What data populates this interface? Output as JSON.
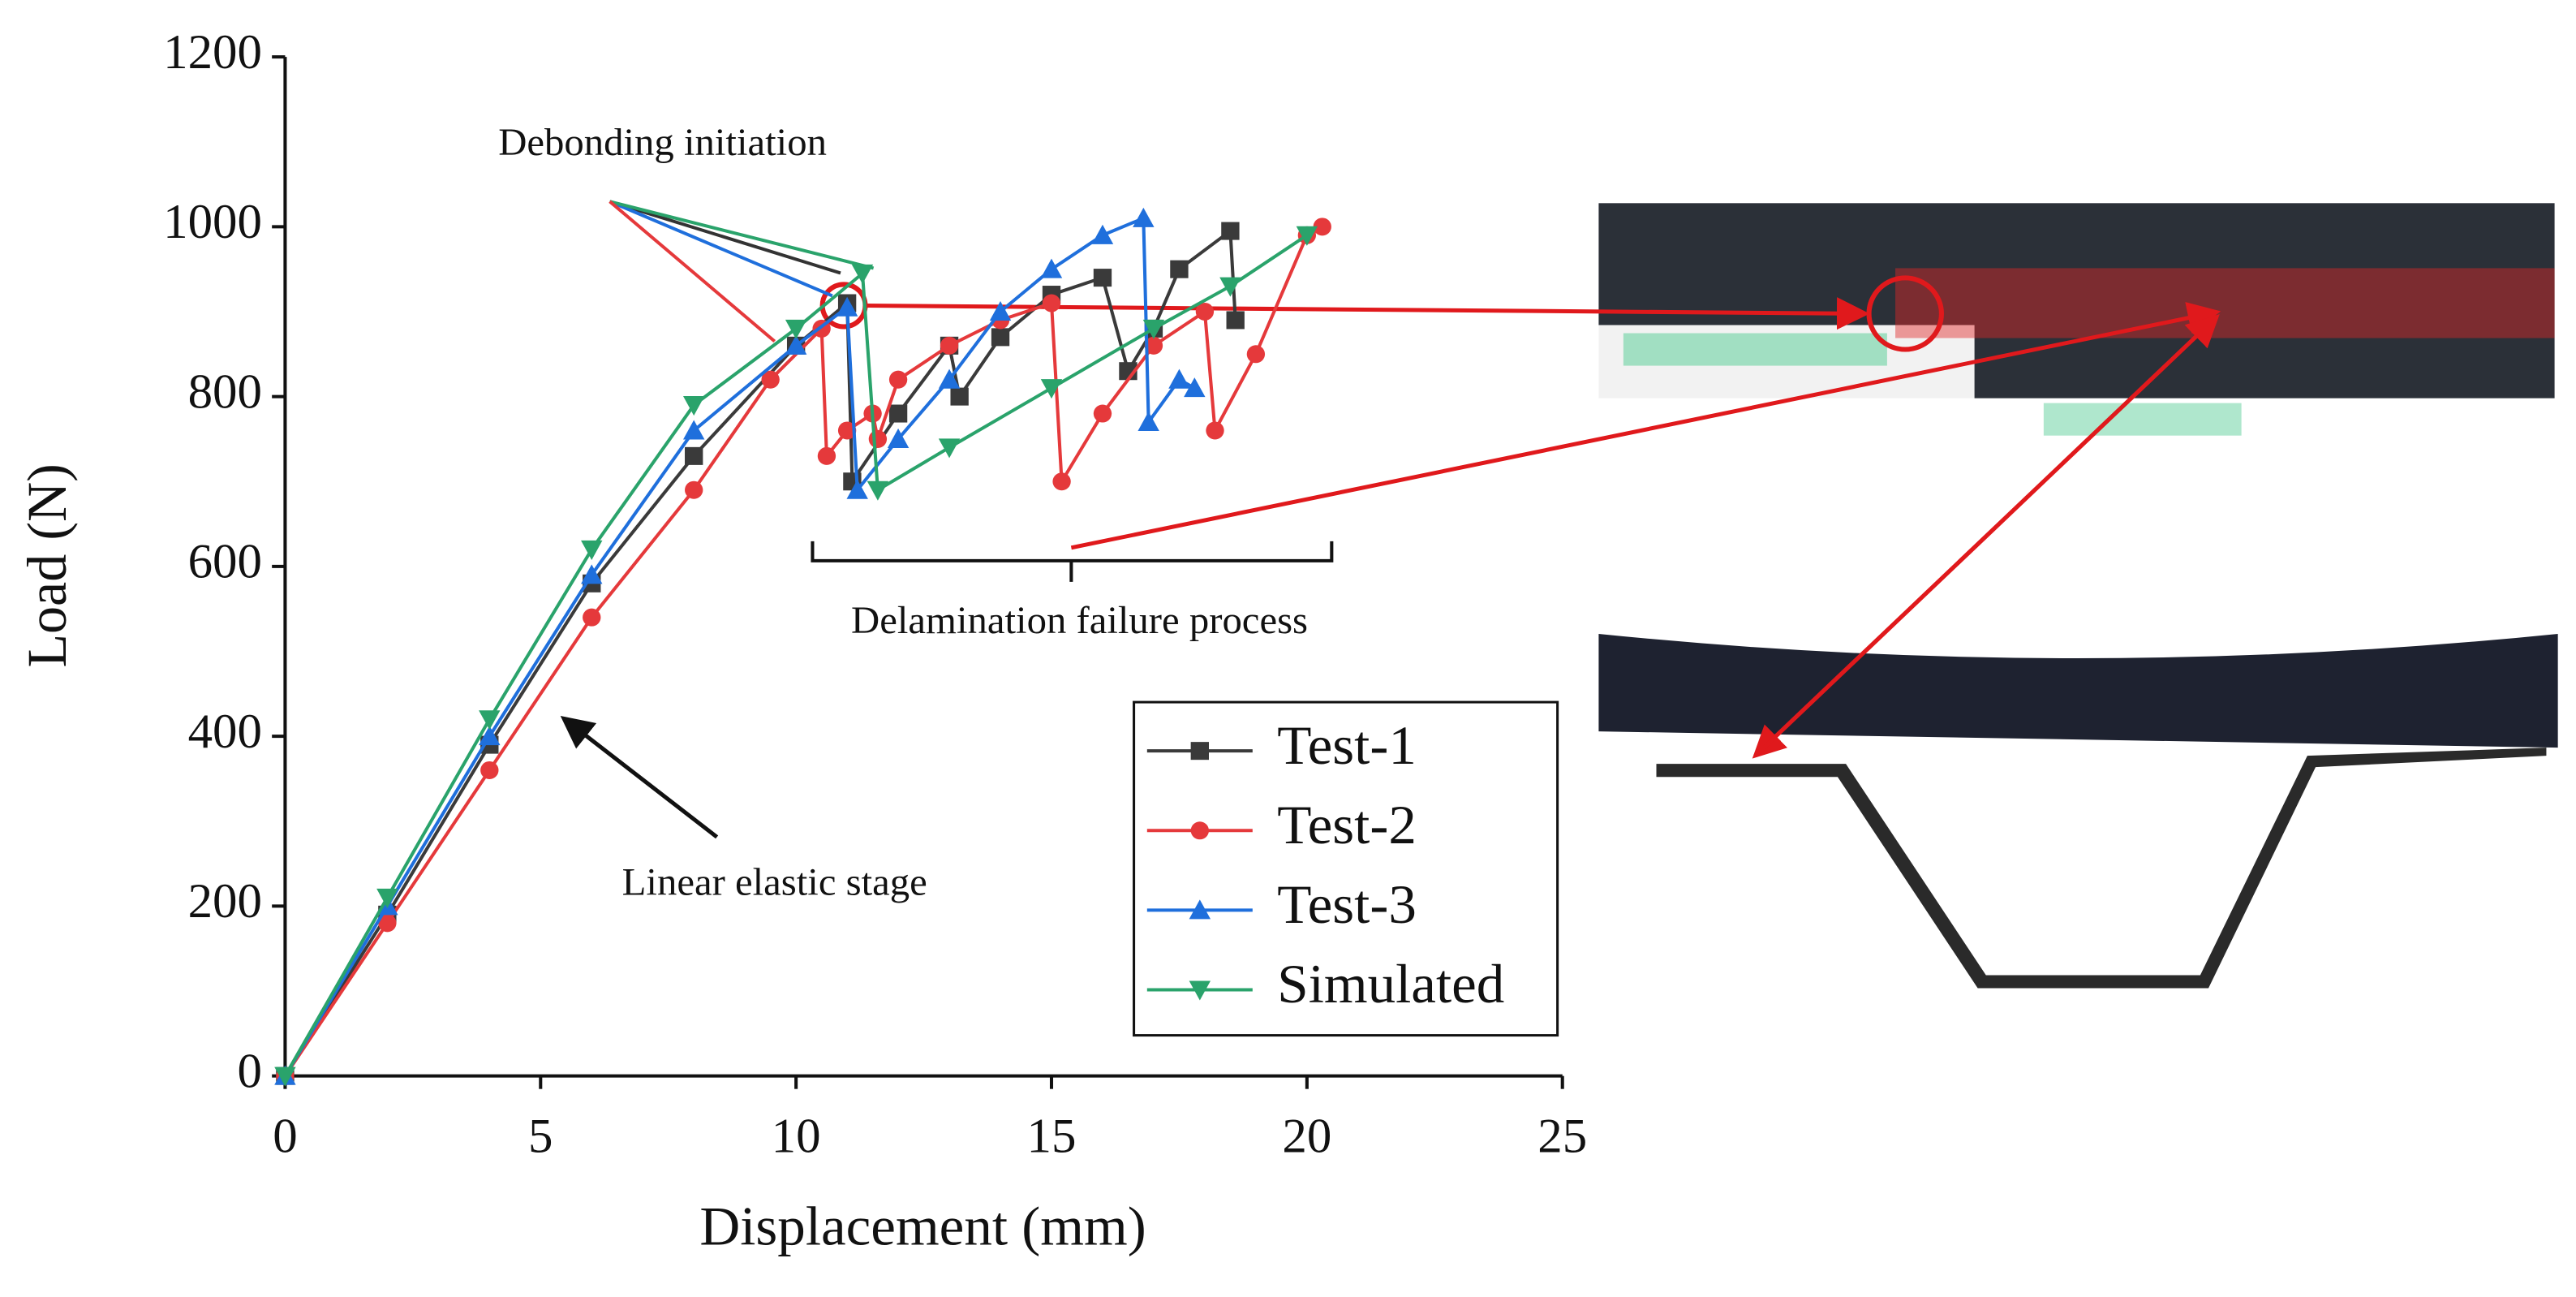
{
  "chart_data": {
    "type": "line",
    "xlabel": "Displacement (mm)",
    "ylabel": "Load (N)",
    "xlim": [
      0,
      25
    ],
    "ylim": [
      0,
      1200
    ],
    "xticks": [
      0,
      5,
      10,
      15,
      20,
      25
    ],
    "yticks": [
      0,
      200,
      400,
      600,
      800,
      1000,
      1200
    ],
    "legend": "lower right",
    "annotations": [
      "Debonding initiation",
      "Delamination failure process",
      "Linear elastic stage"
    ],
    "series": [
      {
        "name": "Test-1",
        "color": "#3a3a3a",
        "marker": "square",
        "x": [
          0,
          2,
          4,
          6,
          8,
          10,
          11,
          11.1,
          12,
          13,
          13.2,
          14,
          15,
          16,
          16.5,
          17,
          17.5,
          18.5,
          18.6
        ],
        "values": [
          0,
          190,
          390,
          580,
          730,
          860,
          910,
          700,
          780,
          860,
          800,
          870,
          920,
          940,
          830,
          880,
          950,
          995,
          890
        ]
      },
      {
        "name": "Test-2",
        "color": "#e5393b",
        "marker": "circle",
        "x": [
          0,
          2,
          4,
          6,
          8,
          9.5,
          10.5,
          10.6,
          11,
          11.5,
          11.6,
          12,
          13,
          14,
          15,
          15.2,
          16,
          17,
          18,
          18.2,
          19,
          20,
          20.3
        ],
        "values": [
          0,
          180,
          360,
          540,
          690,
          820,
          880,
          730,
          760,
          780,
          750,
          820,
          860,
          890,
          910,
          700,
          780,
          860,
          900,
          760,
          850,
          990,
          1000
        ]
      },
      {
        "name": "Test-3",
        "color": "#1f6fdc",
        "marker": "triangle-up",
        "x": [
          0,
          2,
          4,
          6,
          8,
          10,
          11,
          11.2,
          12,
          13,
          14,
          15,
          16,
          16.8,
          16.9,
          17.5,
          17.8
        ],
        "values": [
          0,
          200,
          400,
          590,
          760,
          860,
          905,
          690,
          750,
          820,
          900,
          950,
          990,
          1010,
          770,
          820,
          810
        ]
      },
      {
        "name": "Simulated",
        "color": "#2aa36b",
        "marker": "triangle-down",
        "x": [
          0,
          2,
          4,
          6,
          8,
          10,
          11.3,
          11.6,
          13,
          15,
          17,
          18.5,
          20
        ],
        "values": [
          0,
          210,
          420,
          620,
          790,
          880,
          945,
          690,
          740,
          810,
          880,
          930,
          990
        ]
      }
    ]
  }
}
